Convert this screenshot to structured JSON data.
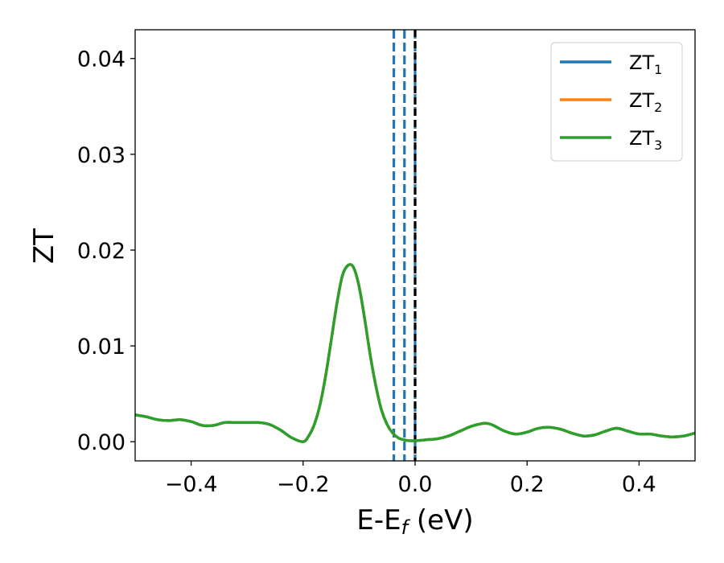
{
  "chart_data": {
    "type": "line",
    "xlabel": {
      "main": "E-E",
      "sub": "f",
      "suffix": " (eV)"
    },
    "ylabel": "ZT",
    "xlim": [
      -0.5,
      0.5
    ],
    "ylim": [
      -0.002,
      0.043
    ],
    "xticks": [
      -0.4,
      -0.2,
      0.0,
      0.2,
      0.4
    ],
    "xtick_labels": [
      "−0.4",
      "−0.2",
      "0.0",
      "0.2",
      "0.4"
    ],
    "yticks": [
      0.0,
      0.01,
      0.02,
      0.03,
      0.04
    ],
    "ytick_labels": [
      "0.00",
      "0.01",
      "0.02",
      "0.03",
      "0.04"
    ],
    "grid": false,
    "legend_position": "top-right",
    "colors": {
      "zt1": "#1f77b4",
      "zt2": "#ff7f0e",
      "zt3": "#2ca02c",
      "fermi": "#000000",
      "dashed": "#1f77b4"
    },
    "series": [
      {
        "name": "ZT",
        "sub": "1",
        "color": "#1f77b4"
      },
      {
        "name": "ZT",
        "sub": "2",
        "color": "#ff7f0e"
      },
      {
        "name": "ZT",
        "sub": "3",
        "color": "#2ca02c"
      }
    ],
    "curve_x": [
      -0.5,
      -0.48,
      -0.46,
      -0.44,
      -0.42,
      -0.4,
      -0.38,
      -0.36,
      -0.34,
      -0.32,
      -0.3,
      -0.28,
      -0.26,
      -0.24,
      -0.22,
      -0.2,
      -0.19,
      -0.18,
      -0.17,
      -0.16,
      -0.15,
      -0.14,
      -0.13,
      -0.12,
      -0.11,
      -0.1,
      -0.09,
      -0.08,
      -0.07,
      -0.06,
      -0.05,
      -0.04,
      -0.03,
      -0.02,
      -0.01,
      0.0,
      0.02,
      0.04,
      0.06,
      0.08,
      0.1,
      0.12,
      0.13,
      0.14,
      0.16,
      0.18,
      0.2,
      0.22,
      0.24,
      0.26,
      0.28,
      0.3,
      0.32,
      0.34,
      0.36,
      0.38,
      0.4,
      0.42,
      0.44,
      0.46,
      0.48,
      0.5
    ],
    "curve_y": [
      0.0028,
      0.0026,
      0.0023,
      0.0022,
      0.0023,
      0.0021,
      0.0017,
      0.0017,
      0.002,
      0.002,
      0.002,
      0.002,
      0.0018,
      0.0012,
      0.0004,
      0.0,
      0.0006,
      0.0018,
      0.0038,
      0.0068,
      0.0105,
      0.0143,
      0.0173,
      0.0184,
      0.0182,
      0.0162,
      0.0128,
      0.009,
      0.0058,
      0.0033,
      0.0018,
      0.0009,
      0.0004,
      0.0002,
      0.0001,
      0.0001,
      0.0002,
      0.0003,
      0.0006,
      0.0011,
      0.0016,
      0.0019,
      0.0019,
      0.0017,
      0.0011,
      0.0008,
      0.001,
      0.0014,
      0.0015,
      0.0013,
      0.0009,
      0.0006,
      0.0007,
      0.0011,
      0.0014,
      0.0011,
      0.0008,
      0.0008,
      0.0006,
      0.0005,
      0.0006,
      0.0009
    ],
    "fermi_line_x": 0.0,
    "dashed_lines_x": [
      -0.038,
      -0.019,
      0.0
    ]
  }
}
